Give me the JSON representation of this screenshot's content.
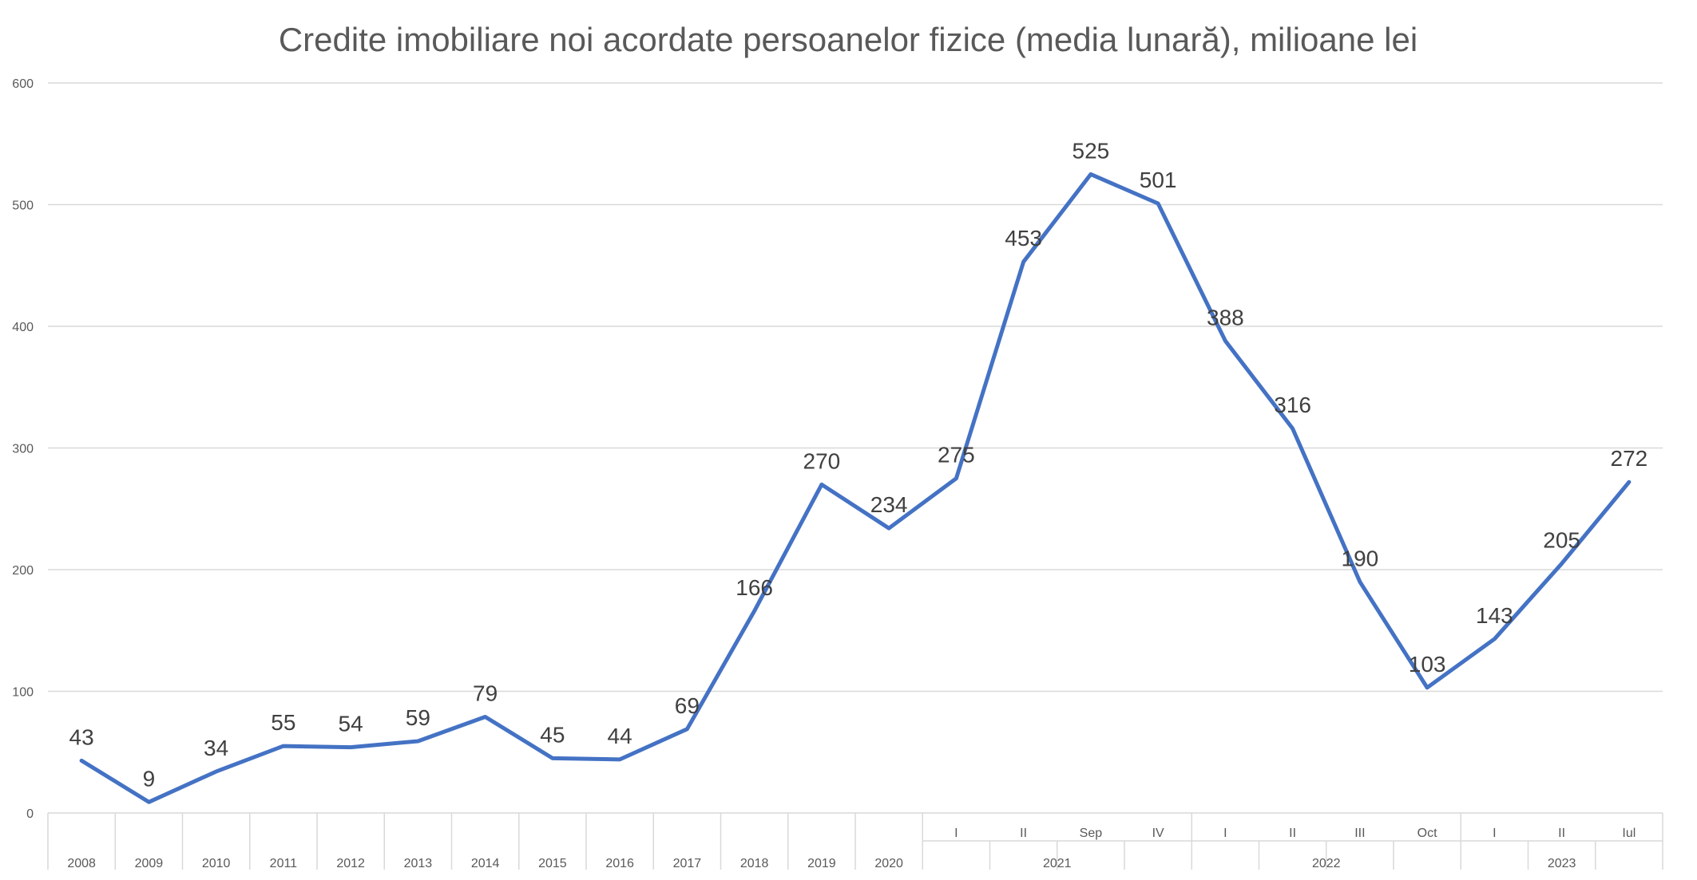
{
  "chart_data": {
    "type": "line",
    "title": "Credite imobiliare noi acordate persoanelor fizice (media lunară), milioane lei",
    "xlabel": "",
    "ylabel": "",
    "ylim": [
      0,
      600
    ],
    "yticks": [
      0,
      100,
      200,
      300,
      400,
      500,
      600
    ],
    "grid": true,
    "legend": "none",
    "line_color": "#4472c4",
    "categories": [
      {
        "label": "2008",
        "group": ""
      },
      {
        "label": "2009",
        "group": ""
      },
      {
        "label": "2010",
        "group": ""
      },
      {
        "label": "2011",
        "group": ""
      },
      {
        "label": "2012",
        "group": ""
      },
      {
        "label": "2013",
        "group": ""
      },
      {
        "label": "2014",
        "group": ""
      },
      {
        "label": "2015",
        "group": ""
      },
      {
        "label": "2016",
        "group": ""
      },
      {
        "label": "2017",
        "group": ""
      },
      {
        "label": "2018",
        "group": ""
      },
      {
        "label": "2019",
        "group": ""
      },
      {
        "label": "2020",
        "group": ""
      },
      {
        "label": "I",
        "group": "2021"
      },
      {
        "label": "II",
        "group": "2021"
      },
      {
        "label": "Sep",
        "group": "2021"
      },
      {
        "label": "IV",
        "group": "2021"
      },
      {
        "label": "I",
        "group": "2022"
      },
      {
        "label": "II",
        "group": "2022"
      },
      {
        "label": "III",
        "group": "2022"
      },
      {
        "label": "Oct",
        "group": "2022"
      },
      {
        "label": "I",
        "group": "2023"
      },
      {
        "label": "II",
        "group": "2023"
      },
      {
        "label": "Iul",
        "group": "2023"
      }
    ],
    "groups": [
      "2021",
      "2022",
      "2023"
    ],
    "series": [
      {
        "name": "",
        "values": [
          43,
          9,
          34,
          55,
          54,
          59,
          79,
          45,
          44,
          69,
          166,
          270,
          234,
          275,
          453,
          525,
          501,
          388,
          316,
          190,
          103,
          143,
          205,
          272
        ]
      }
    ]
  }
}
